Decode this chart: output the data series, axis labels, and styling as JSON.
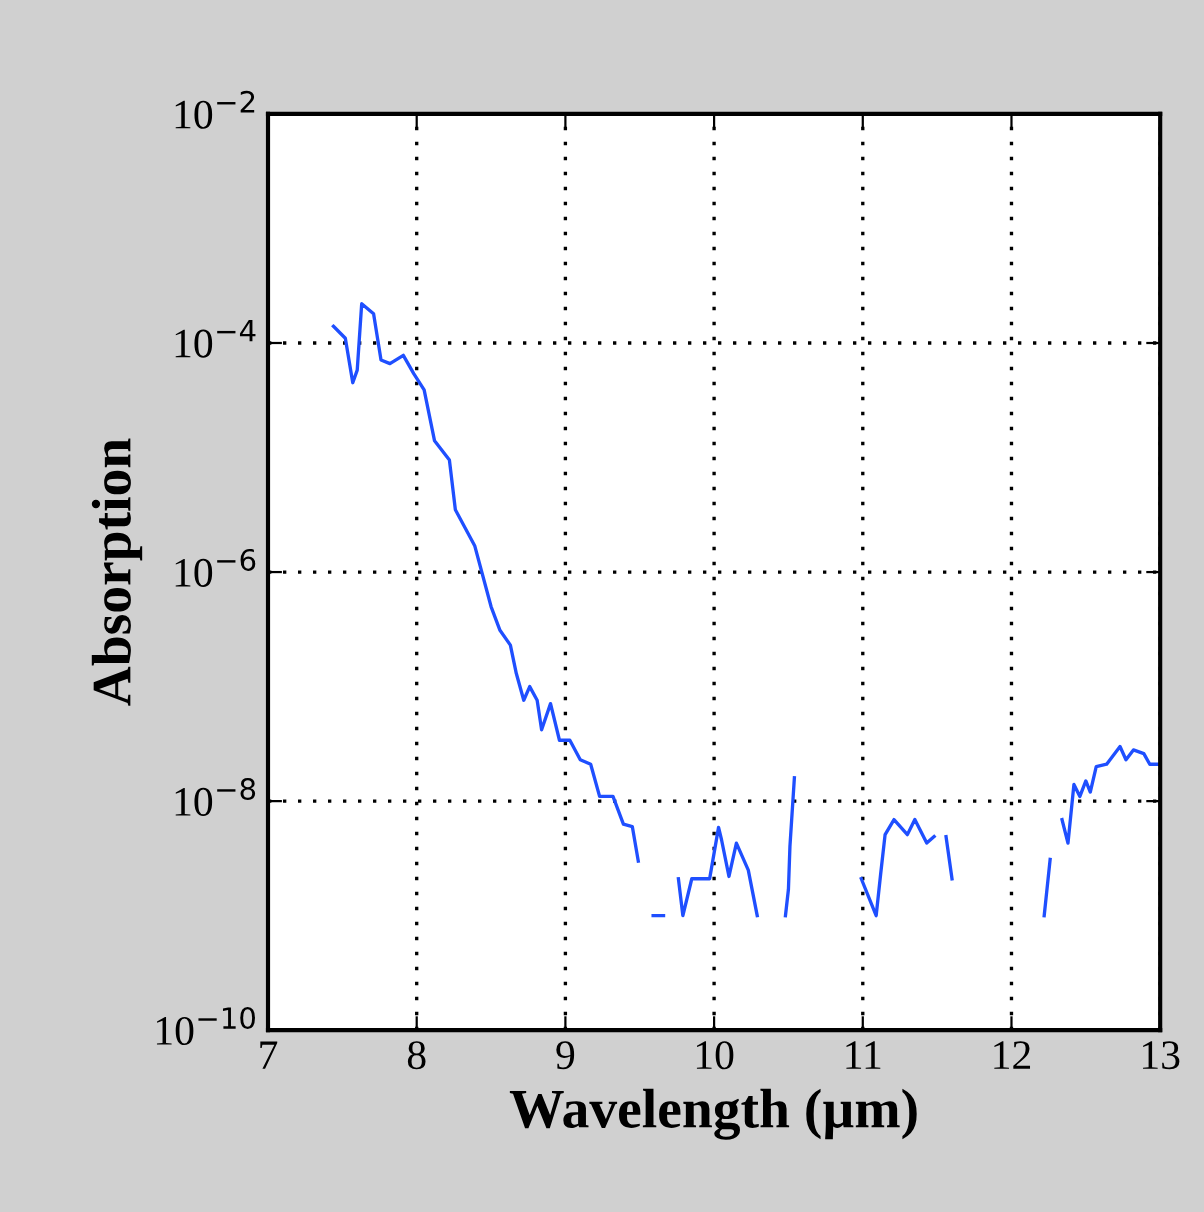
{
  "chart_data": {
    "type": "line",
    "xlabel": "Wavelength (µm)",
    "ylabel": "Absorption",
    "log": "y",
    "grid": true,
    "line_style": "solid",
    "marker": "none",
    "xlim": [
      7,
      13
    ],
    "xticks": [
      7,
      8,
      9,
      10,
      11,
      12,
      13
    ],
    "ylim": [
      1e-10,
      0.01
    ],
    "yticks": [
      {
        "value": 0.01,
        "label": "10$^{−2}$"
      },
      {
        "value": 0.0001,
        "label": "10$^{−4}$"
      },
      {
        "value": 1e-06,
        "label": "10$^{−6}$"
      },
      {
        "value": 1e-08,
        "label": "10$^{−8}$"
      },
      {
        "value": 1e-10,
        "label": "10$^{−10}$"
      }
    ],
    "series": [
      {
        "color": "#1f4fff",
        "x": [
          7.44,
          7.52,
          7.57,
          7.6,
          7.63,
          7.71,
          7.76,
          7.82,
          7.91,
          7.98,
          8.05,
          8.12,
          8.22,
          8.26,
          8.39,
          8.5,
          8.56,
          8.63,
          8.67,
          8.72,
          8.76,
          8.81,
          8.84,
          8.9,
          8.96,
          9.03,
          9.1,
          9.17,
          9.23,
          9.32,
          9.39,
          9.45,
          9.49,
          9.54,
          9.59,
          9.66,
          9.71,
          9.76,
          9.79,
          9.85,
          9.97,
          10.03,
          10.05,
          10.1,
          10.15,
          10.23,
          10.29,
          10.38,
          10.48,
          10.5,
          10.51,
          10.54,
          10.76,
          10.99,
          11.09,
          11.12,
          11.15,
          11.21,
          11.3,
          11.35,
          11.43,
          11.48,
          11.52,
          11.56,
          11.6,
          11.9,
          12.22,
          12.26,
          12.3,
          12.34,
          12.38,
          12.42,
          12.46,
          12.5,
          12.53,
          12.57,
          12.64,
          12.73,
          12.77,
          12.82,
          12.89,
          12.93,
          13.0
        ],
        "values": [
          0.00014,
          0.00011,
          4.5e-05,
          5.8e-05,
          0.00022,
          0.00018,
          7.1e-05,
          6.6e-05,
          7.8e-05,
          5.4e-05,
          3.9e-05,
          1.4e-05,
          9.5e-06,
          3.5e-06,
          1.7e-06,
          5e-07,
          3.1e-07,
          2.3e-07,
          1.3e-07,
          7.6e-08,
          1e-07,
          7.6e-08,
          4.2e-08,
          7.1e-08,
          3.4e-08,
          3.4e-08,
          2.3e-08,
          2.1e-08,
          1.1e-08,
          1.1e-08,
          6.3e-09,
          6e-09,
          3e-09,
          null,
          1e-09,
          1e-09,
          null,
          2.1e-09,
          1e-09,
          2.1e-09,
          2.1e-09,
          5.9e-09,
          4.6e-09,
          2.2e-09,
          4.3e-09,
          2.5e-09,
          1e-09,
          null,
          1e-09,
          1.7e-09,
          4e-09,
          1.6e-08,
          null,
          2.1e-09,
          1e-09,
          2.3e-09,
          5.1e-09,
          6.9e-09,
          5.1e-09,
          6.9e-09,
          4.3e-09,
          4.9e-09,
          null,
          4.9e-09,
          2.1e-09,
          null,
          1e-09,
          3.1e-09,
          null,
          6.9e-09,
          4.3e-09,
          1.4e-08,
          1.1e-08,
          1.5e-08,
          1.2e-08,
          2e-08,
          2.1e-08,
          3e-08,
          2.3e-08,
          2.8e-08,
          2.6e-08,
          2.1e-08,
          2.1e-08
        ]
      }
    ]
  }
}
